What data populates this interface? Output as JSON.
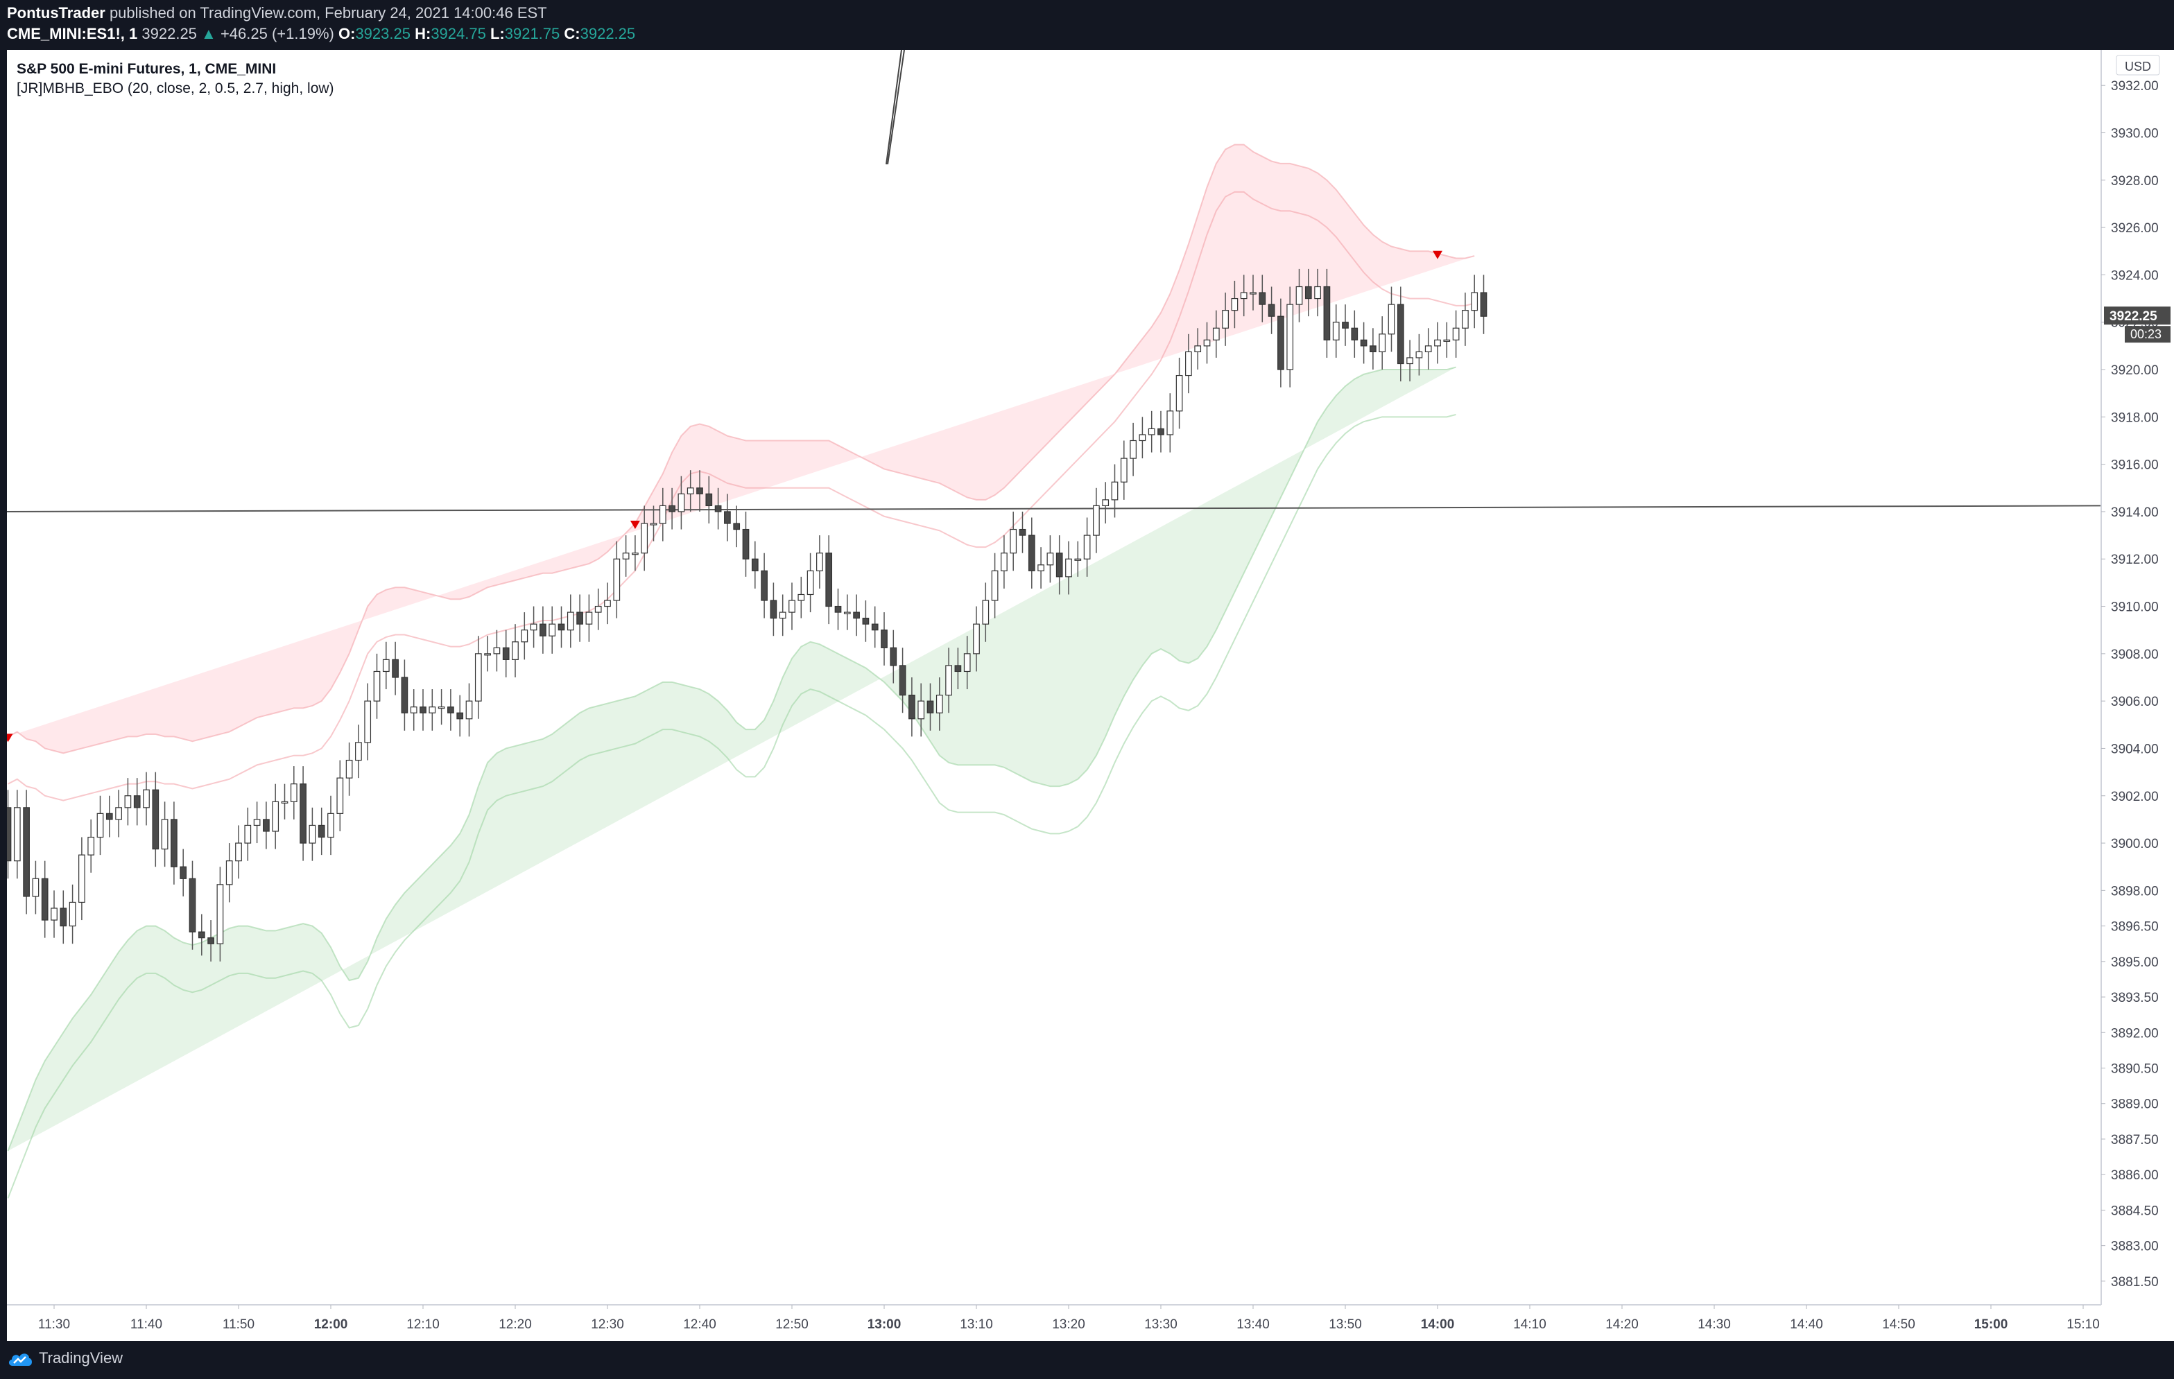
{
  "header": {
    "author": "PontusTrader",
    "published_text": "published on TradingView.com, February 24, 2021 14:00:46 EST",
    "symbol": "CME_MINI:ES1!, 1",
    "last": "3922.25",
    "change": "+46.25 (+1.19%)",
    "o_label": "O:",
    "o": "3923.25",
    "h_label": "H:",
    "h": "3924.75",
    "l_label": "L:",
    "l": "3921.75",
    "c_label": "C:",
    "c": "3922.25"
  },
  "legend": {
    "title": "S&P 500 E-mini Futures, 1, CME_MINI",
    "indicator": "[JR]MBHB_EBO (20, close, 2, 0.5, 2.7, high, low)"
  },
  "price_axis": {
    "currency": "USD",
    "ticks": [
      "3932.00",
      "3930.00",
      "3928.00",
      "3926.00",
      "3924.00",
      "3922.00",
      "3920.00",
      "3918.00",
      "3916.00",
      "3914.00",
      "3912.00",
      "3910.00",
      "3908.00",
      "3906.00",
      "3904.00",
      "3902.00",
      "3900.00",
      "3898.00",
      "3896.50",
      "3895.00",
      "3893.50",
      "3892.00",
      "3890.50",
      "3889.00",
      "3887.50",
      "3886.00",
      "3884.50",
      "3883.00",
      "3881.50"
    ],
    "last_price_label": "3922.25",
    "countdown": "00:23"
  },
  "time_axis": {
    "ticks": [
      "11:30",
      "11:40",
      "11:50",
      "12:00",
      "12:10",
      "12:20",
      "12:30",
      "12:40",
      "12:50",
      "13:00",
      "13:10",
      "13:20",
      "13:30",
      "13:40",
      "13:50",
      "14:00",
      "14:10",
      "14:20",
      "14:30",
      "14:40",
      "14:50",
      "15:00",
      "15:10"
    ]
  },
  "footer": {
    "brand": "TradingView"
  },
  "colors": {
    "up_candle": "#ffffff",
    "down_candle": "#4a4a4a",
    "wick": "#555555",
    "upper_band": "#ffcdd2",
    "lower_band": "#c8e6c9",
    "signal": "#e00000",
    "accent_teal": "#26a69a"
  },
  "chart_data": {
    "type": "candlestick",
    "title": "S&P 500 E-mini Futures, 1, CME_MINI",
    "ylim": [
      3880.5,
      3933.5
    ],
    "x_start": "11:25",
    "x_step_minutes": 1,
    "close": [
      3899.25,
      3901.5,
      3897.75,
      3898.5,
      3896.75,
      3897.25,
      3896.5,
      3897.5,
      3899.5,
      3900.25,
      3901.25,
      3901.0,
      3901.5,
      3902.0,
      3901.5,
      3902.25,
      3899.75,
      3901.0,
      3899.0,
      3898.5,
      3896.25,
      3896.0,
      3895.75,
      3898.25,
      3899.25,
      3900.0,
      3900.75,
      3901.0,
      3900.5,
      3901.75,
      3901.75,
      3902.5,
      3900.0,
      3900.75,
      3900.25,
      3901.25,
      3902.75,
      3903.5,
      3904.25,
      3906.0,
      3907.25,
      3907.75,
      3907.0,
      3905.5,
      3905.75,
      3905.5,
      3905.75,
      3905.75,
      3905.5,
      3905.25,
      3906.0,
      3908.0,
      3908.0,
      3908.25,
      3907.75,
      3908.5,
      3909.0,
      3909.25,
      3908.75,
      3909.25,
      3909.0,
      3909.75,
      3909.25,
      3909.75,
      3910.0,
      3910.25,
      3912.0,
      3912.25,
      3912.25,
      3913.5,
      3913.5,
      3914.25,
      3914.0,
      3914.75,
      3915.0,
      3914.75,
      3914.25,
      3914.0,
      3913.5,
      3913.25,
      3912.0,
      3911.5,
      3910.25,
      3909.5,
      3909.75,
      3910.25,
      3910.5,
      3911.5,
      3912.25,
      3910.0,
      3909.75,
      3909.75,
      3909.5,
      3909.25,
      3909.0,
      3908.25,
      3907.5,
      3906.25,
      3905.25,
      3906.0,
      3905.5,
      3906.25,
      3907.5,
      3907.25,
      3908.0,
      3909.25,
      3910.25,
      3911.5,
      3912.25,
      3913.25,
      3913.0,
      3911.5,
      3911.75,
      3912.25,
      3911.25,
      3912.0,
      3912.0,
      3913.0,
      3914.25,
      3914.5,
      3915.25,
      3916.25,
      3917.0,
      3917.25,
      3917.5,
      3917.25,
      3918.25,
      3919.75,
      3920.75,
      3921.0,
      3921.25,
      3921.75,
      3922.5,
      3923.0,
      3923.25,
      3923.25,
      3922.75,
      3922.25,
      3920.0,
      3922.75,
      3923.5,
      3923.0,
      3923.5,
      3921.25,
      3922.0,
      3921.75,
      3921.25,
      3921.0,
      3920.75,
      3921.5,
      3922.75,
      3920.25,
      3920.5,
      3920.75,
      3921.0,
      3921.25,
      3921.25,
      3921.75,
      3922.5,
      3923.25,
      3922.25
    ],
    "open": [
      3901.5,
      3899.25,
      3901.5,
      3897.75,
      3898.5,
      3896.75,
      3897.25,
      3896.5,
      3897.5,
      3899.5,
      3900.25,
      3901.25,
      3901.0,
      3901.5,
      3902.0,
      3901.5,
      3902.25,
      3899.75,
      3901.0,
      3899.0,
      3898.5,
      3896.25,
      3896.0,
      3895.75,
      3898.25,
      3899.25,
      3900.0,
      3900.75,
      3901.0,
      3900.5,
      3901.75,
      3901.75,
      3902.5,
      3900.0,
      3900.75,
      3900.25,
      3901.25,
      3902.75,
      3903.5,
      3904.25,
      3906.0,
      3907.25,
      3907.75,
      3907.0,
      3905.5,
      3905.75,
      3905.5,
      3905.75,
      3905.75,
      3905.5,
      3905.25,
      3906.0,
      3908.0,
      3908.0,
      3908.25,
      3907.75,
      3908.5,
      3909.0,
      3909.25,
      3908.75,
      3909.25,
      3909.0,
      3909.75,
      3909.25,
      3909.75,
      3910.0,
      3910.25,
      3912.0,
      3912.25,
      3912.25,
      3913.5,
      3913.5,
      3914.25,
      3914.0,
      3914.75,
      3915.0,
      3914.75,
      3914.25,
      3914.0,
      3913.5,
      3913.25,
      3912.0,
      3911.5,
      3910.25,
      3909.5,
      3909.75,
      3910.25,
      3910.5,
      3911.5,
      3912.25,
      3910.0,
      3909.75,
      3909.75,
      3909.5,
      3909.25,
      3909.0,
      3908.25,
      3907.5,
      3906.25,
      3905.25,
      3906.0,
      3905.5,
      3906.25,
      3907.5,
      3907.25,
      3908.0,
      3909.25,
      3910.25,
      3911.5,
      3912.25,
      3913.25,
      3913.0,
      3911.5,
      3911.75,
      3912.25,
      3911.25,
      3912.0,
      3912.0,
      3913.0,
      3914.25,
      3914.5,
      3915.25,
      3916.25,
      3917.0,
      3917.25,
      3917.5,
      3917.25,
      3918.25,
      3919.75,
      3920.75,
      3921.0,
      3921.25,
      3921.75,
      3922.5,
      3923.0,
      3923.25,
      3923.25,
      3922.75,
      3922.25,
      3920.0,
      3922.75,
      3923.5,
      3923.0,
      3923.5,
      3921.25,
      3922.0,
      3921.75,
      3921.25,
      3921.0,
      3920.75,
      3921.5,
      3922.75,
      3920.25,
      3920.5,
      3920.75,
      3921.0,
      3921.25,
      3921.25,
      3921.75,
      3922.5,
      3923.25
    ],
    "upper_band_outer": [
      3904.5,
      3904.7,
      3904.4,
      3904.3,
      3904.0,
      3903.9,
      3903.8,
      3903.9,
      3904.0,
      3904.1,
      3904.2,
      3904.3,
      3904.4,
      3904.5,
      3904.5,
      3904.6,
      3904.6,
      3904.5,
      3904.5,
      3904.4,
      3904.3,
      3904.4,
      3904.5,
      3904.6,
      3904.7,
      3904.9,
      3905.1,
      3905.3,
      3905.4,
      3905.5,
      3905.6,
      3905.7,
      3905.7,
      3905.8,
      3906.0,
      3906.5,
      3907.2,
      3908.0,
      3909.0,
      3910.0,
      3910.5,
      3910.7,
      3910.8,
      3910.8,
      3910.7,
      3910.6,
      3910.5,
      3910.4,
      3910.3,
      3910.3,
      3910.4,
      3910.6,
      3910.8,
      3910.9,
      3911.0,
      3911.1,
      3911.2,
      3911.3,
      3911.4,
      3911.4,
      3911.5,
      3911.6,
      3911.7,
      3911.8,
      3912.0,
      3912.3,
      3912.7,
      3913.1,
      3913.5,
      3914.2,
      3914.9,
      3915.6,
      3916.5,
      3917.2,
      3917.6,
      3917.7,
      3917.6,
      3917.4,
      3917.2,
      3917.1,
      3917.0,
      3917.0,
      3917.0,
      3917.0,
      3917.0,
      3917.0,
      3917.0,
      3917.0,
      3917.0,
      3917.0,
      3916.8,
      3916.6,
      3916.4,
      3916.2,
      3916.0,
      3915.8,
      3915.7,
      3915.6,
      3915.5,
      3915.4,
      3915.3,
      3915.2,
      3915.0,
      3914.8,
      3914.6,
      3914.5,
      3914.5,
      3914.7,
      3915.0,
      3915.4,
      3915.8,
      3916.2,
      3916.6,
      3917.0,
      3917.4,
      3917.8,
      3918.2,
      3918.6,
      3919.0,
      3919.4,
      3919.8,
      3920.3,
      3920.8,
      3921.3,
      3921.8,
      3922.4,
      3923.2,
      3924.2,
      3925.3,
      3926.5,
      3927.7,
      3928.7,
      3929.3,
      3929.5,
      3929.5,
      3929.2,
      3929.0,
      3928.8,
      3928.7,
      3928.7,
      3928.6,
      3928.5,
      3928.3,
      3928.0,
      3927.6,
      3927.1,
      3926.6,
      3926.1,
      3925.7,
      3925.4,
      3925.2,
      3925.1,
      3925.0,
      3925.0,
      3925.0,
      3924.9,
      3924.8,
      3924.7,
      3924.7,
      3924.8
    ],
    "upper_band_inner": [
      3902.5,
      3902.7,
      3902.4,
      3902.3,
      3902.0,
      3901.9,
      3901.8,
      3901.9,
      3902.0,
      3902.1,
      3902.2,
      3902.3,
      3902.4,
      3902.5,
      3902.5,
      3902.6,
      3902.6,
      3902.5,
      3902.5,
      3902.4,
      3902.3,
      3902.4,
      3902.5,
      3902.6,
      3902.7,
      3902.9,
      3903.1,
      3903.3,
      3903.4,
      3903.5,
      3903.6,
      3903.7,
      3903.7,
      3903.8,
      3904.0,
      3904.5,
      3905.2,
      3906.0,
      3907.0,
      3908.0,
      3908.5,
      3908.7,
      3908.8,
      3908.8,
      3908.7,
      3908.6,
      3908.5,
      3908.4,
      3908.3,
      3908.3,
      3908.4,
      3908.6,
      3908.8,
      3908.9,
      3909.0,
      3909.1,
      3909.2,
      3909.3,
      3909.4,
      3909.4,
      3909.5,
      3909.6,
      3909.7,
      3909.8,
      3910.0,
      3910.3,
      3910.7,
      3911.1,
      3911.5,
      3912.2,
      3912.9,
      3913.6,
      3914.5,
      3915.2,
      3915.6,
      3915.7,
      3915.6,
      3915.4,
      3915.2,
      3915.1,
      3915.0,
      3915.0,
      3915.0,
      3915.0,
      3915.0,
      3915.0,
      3915.0,
      3915.0,
      3915.0,
      3915.0,
      3914.8,
      3914.6,
      3914.4,
      3914.2,
      3914.0,
      3913.8,
      3913.7,
      3913.6,
      3913.5,
      3913.4,
      3913.3,
      3913.2,
      3913.0,
      3912.8,
      3912.6,
      3912.5,
      3912.5,
      3912.7,
      3913.0,
      3913.4,
      3913.8,
      3914.2,
      3914.6,
      3915.0,
      3915.4,
      3915.8,
      3916.2,
      3916.6,
      3917.0,
      3917.4,
      3917.8,
      3918.3,
      3918.8,
      3919.3,
      3919.8,
      3920.4,
      3921.2,
      3922.2,
      3923.3,
      3924.5,
      3925.7,
      3926.7,
      3927.3,
      3927.5,
      3927.5,
      3927.2,
      3927.0,
      3926.8,
      3926.7,
      3926.7,
      3926.6,
      3926.5,
      3926.3,
      3926.0,
      3925.6,
      3925.1,
      3924.6,
      3924.1,
      3923.7,
      3923.4,
      3923.2,
      3923.1,
      3923.0,
      3923.0,
      3923.0,
      3922.9,
      3922.8,
      3922.7,
      3922.7,
      3922.8
    ],
    "lower_band_inner": [
      3887.0,
      3888.0,
      3889.0,
      3890.0,
      3890.8,
      3891.4,
      3892.0,
      3892.6,
      3893.1,
      3893.6,
      3894.2,
      3894.8,
      3895.4,
      3895.9,
      3896.3,
      3896.5,
      3896.5,
      3896.3,
      3896.0,
      3895.8,
      3895.7,
      3895.8,
      3896.0,
      3896.2,
      3896.4,
      3896.5,
      3896.5,
      3896.4,
      3896.3,
      3896.3,
      3896.4,
      3896.5,
      3896.6,
      3896.5,
      3896.2,
      3895.6,
      3894.8,
      3894.2,
      3894.3,
      3895.0,
      3896.0,
      3896.8,
      3897.4,
      3897.9,
      3898.3,
      3898.7,
      3899.1,
      3899.5,
      3899.9,
      3900.4,
      3901.2,
      3902.4,
      3903.4,
      3903.8,
      3904.0,
      3904.1,
      3904.2,
      3904.3,
      3904.4,
      3904.6,
      3904.9,
      3905.2,
      3905.5,
      3905.7,
      3905.8,
      3905.9,
      3906.0,
      3906.1,
      3906.2,
      3906.4,
      3906.6,
      3906.8,
      3906.8,
      3906.7,
      3906.6,
      3906.5,
      3906.3,
      3906.0,
      3905.6,
      3905.1,
      3904.8,
      3904.8,
      3905.2,
      3906.0,
      3907.0,
      3907.8,
      3908.3,
      3908.5,
      3908.4,
      3908.2,
      3908.0,
      3907.8,
      3907.6,
      3907.4,
      3907.1,
      3906.8,
      3906.4,
      3906.0,
      3905.5,
      3904.9,
      3904.3,
      3903.7,
      3903.4,
      3903.3,
      3903.3,
      3903.3,
      3903.3,
      3903.3,
      3903.2,
      3903.0,
      3902.8,
      3902.6,
      3902.5,
      3902.4,
      3902.4,
      3902.5,
      3902.7,
      3903.1,
      3903.7,
      3904.5,
      3905.4,
      3906.2,
      3906.9,
      3907.5,
      3908.0,
      3908.2,
      3908.0,
      3907.7,
      3907.6,
      3907.8,
      3908.3,
      3909.0,
      3909.8,
      3910.6,
      3911.4,
      3912.2,
      3913.0,
      3913.8,
      3914.6,
      3915.4,
      3916.2,
      3917.0,
      3917.8,
      3918.4,
      3918.9,
      3919.3,
      3919.6,
      3919.8,
      3919.9,
      3920.0,
      3920.0,
      3920.0,
      3920.0,
      3920.0,
      3920.0,
      3920.0,
      3920.0,
      3920.1
    ],
    "lower_band_outer": [
      3885.0,
      3886.0,
      3887.0,
      3888.0,
      3888.8,
      3889.4,
      3890.0,
      3890.6,
      3891.1,
      3891.6,
      3892.2,
      3892.8,
      3893.4,
      3893.9,
      3894.3,
      3894.5,
      3894.5,
      3894.3,
      3894.0,
      3893.8,
      3893.7,
      3893.8,
      3894.0,
      3894.2,
      3894.4,
      3894.5,
      3894.5,
      3894.4,
      3894.3,
      3894.3,
      3894.4,
      3894.5,
      3894.6,
      3894.5,
      3894.2,
      3893.6,
      3892.8,
      3892.2,
      3892.3,
      3893.0,
      3894.0,
      3894.8,
      3895.4,
      3895.9,
      3896.3,
      3896.7,
      3897.1,
      3897.5,
      3897.9,
      3898.4,
      3899.2,
      3900.4,
      3901.4,
      3901.8,
      3902.0,
      3902.1,
      3902.2,
      3902.3,
      3902.4,
      3902.6,
      3902.9,
      3903.2,
      3903.5,
      3903.7,
      3903.8,
      3903.9,
      3904.0,
      3904.1,
      3904.2,
      3904.4,
      3904.6,
      3904.8,
      3904.8,
      3904.7,
      3904.6,
      3904.5,
      3904.3,
      3904.0,
      3903.6,
      3903.1,
      3902.8,
      3902.8,
      3903.2,
      3904.0,
      3905.0,
      3905.8,
      3906.3,
      3906.5,
      3906.4,
      3906.2,
      3906.0,
      3905.8,
      3905.6,
      3905.4,
      3905.1,
      3904.8,
      3904.4,
      3904.0,
      3903.5,
      3902.9,
      3902.3,
      3901.7,
      3901.4,
      3901.3,
      3901.3,
      3901.3,
      3901.3,
      3901.3,
      3901.2,
      3901.0,
      3900.8,
      3900.6,
      3900.5,
      3900.4,
      3900.4,
      3900.5,
      3900.7,
      3901.1,
      3901.7,
      3902.5,
      3903.4,
      3904.2,
      3904.9,
      3905.5,
      3906.0,
      3906.2,
      3906.0,
      3905.7,
      3905.6,
      3905.8,
      3906.3,
      3907.0,
      3907.8,
      3908.6,
      3909.4,
      3910.2,
      3911.0,
      3911.8,
      3912.6,
      3913.4,
      3914.2,
      3915.0,
      3915.8,
      3916.4,
      3916.9,
      3917.3,
      3917.6,
      3917.8,
      3917.9,
      3918.0,
      3918.0,
      3918.0,
      3918.0,
      3918.0,
      3918.0,
      3918.0,
      3918.0,
      3918.1
    ],
    "sell_signals": [
      0,
      68,
      155
    ],
    "horizontal_line": {
      "from": 3914.0,
      "to": 3914.25
    }
  }
}
